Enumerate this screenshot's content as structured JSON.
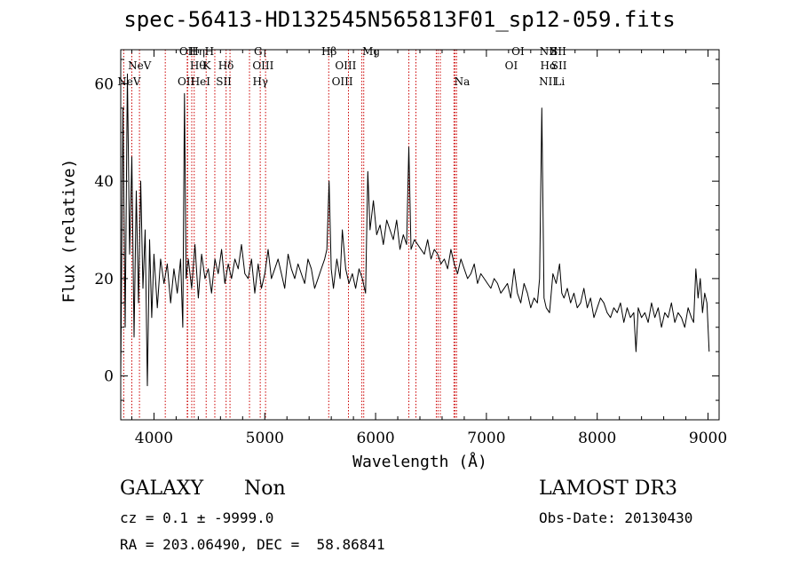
{
  "chart_data": {
    "type": "line",
    "title": "spec-56413-HD132545N565813F01_sp12-059.fits",
    "xlabel": "Wavelength (Å)",
    "ylabel": "Flux (relative)",
    "xlim": [
      3700,
      9100
    ],
    "ylim": [
      -9,
      67
    ],
    "xticks": [
      4000,
      5000,
      6000,
      7000,
      8000,
      9000
    ],
    "yticks": [
      0,
      20,
      40,
      60
    ],
    "grid": false,
    "line_color": "#000000",
    "marker_color": "#cc0000",
    "series": [
      {
        "x": [
          3700,
          3720,
          3740,
          3760,
          3780,
          3800,
          3820,
          3840,
          3860,
          3880,
          3900,
          3920,
          3940,
          3960,
          3980,
          4000,
          4030,
          4060,
          4090,
          4120,
          4150,
          4180,
          4210,
          4240,
          4260,
          4275,
          4290,
          4310,
          4340,
          4370,
          4400,
          4430,
          4460,
          4490,
          4520,
          4550,
          4580,
          4610,
          4640,
          4670,
          4700,
          4730,
          4760,
          4790,
          4820,
          4850,
          4880,
          4910,
          4940,
          4970,
          5000,
          5030,
          5060,
          5090,
          5120,
          5150,
          5180,
          5210,
          5240,
          5270,
          5300,
          5330,
          5360,
          5390,
          5420,
          5450,
          5480,
          5510,
          5540,
          5560,
          5580,
          5600,
          5620,
          5650,
          5680,
          5700,
          5730,
          5760,
          5790,
          5820,
          5850,
          5880,
          5910,
          5930,
          5950,
          5980,
          6010,
          6040,
          6070,
          6100,
          6130,
          6160,
          6190,
          6220,
          6250,
          6280,
          6300,
          6320,
          6350,
          6380,
          6410,
          6440,
          6470,
          6500,
          6530,
          6560,
          6590,
          6620,
          6650,
          6680,
          6710,
          6740,
          6770,
          6800,
          6830,
          6860,
          6890,
          6920,
          6950,
          6980,
          7010,
          7040,
          7070,
          7100,
          7130,
          7160,
          7190,
          7220,
          7250,
          7280,
          7310,
          7340,
          7370,
          7400,
          7430,
          7460,
          7480,
          7500,
          7520,
          7540,
          7570,
          7600,
          7630,
          7660,
          7680,
          7700,
          7730,
          7760,
          7790,
          7820,
          7850,
          7880,
          7910,
          7940,
          7970,
          8000,
          8030,
          8060,
          8090,
          8120,
          8150,
          8180,
          8210,
          8240,
          8270,
          8300,
          8330,
          8350,
          8370,
          8400,
          8430,
          8460,
          8490,
          8520,
          8550,
          8580,
          8610,
          8640,
          8670,
          8700,
          8730,
          8760,
          8790,
          8820,
          8850,
          8870,
          8890,
          8910,
          8930,
          8950,
          8970,
          8990,
          9010
        ],
        "y": [
          0,
          55,
          10,
          62,
          25,
          45,
          8,
          38,
          15,
          40,
          18,
          30,
          -2,
          28,
          12,
          25,
          14,
          24,
          19,
          23,
          15,
          22,
          17,
          24,
          10,
          58,
          20,
          24,
          18,
          27,
          16,
          25,
          20,
          22,
          17,
          24,
          21,
          26,
          19,
          23,
          20,
          24,
          22,
          27,
          21,
          20,
          24,
          17,
          23,
          18,
          21,
          26,
          20,
          22,
          24,
          21,
          18,
          25,
          22,
          20,
          23,
          21,
          19,
          24,
          22,
          18,
          20,
          22,
          24,
          26,
          40,
          22,
          18,
          24,
          20,
          30,
          22,
          19,
          21,
          18,
          22,
          20,
          17,
          42,
          30,
          36,
          29,
          31,
          27,
          32,
          30,
          28,
          32,
          26,
          29,
          27,
          47,
          26,
          28,
          27,
          26,
          25,
          28,
          24,
          26,
          25,
          23,
          24,
          22,
          26,
          23,
          21,
          24,
          22,
          20,
          21,
          23,
          19,
          21,
          20,
          19,
          18,
          20,
          19,
          17,
          18,
          19,
          16,
          22,
          17,
          15,
          19,
          17,
          14,
          16,
          15,
          20,
          55,
          16,
          14,
          13,
          21,
          19,
          23,
          17,
          16,
          18,
          15,
          17,
          14,
          15,
          18,
          14,
          16,
          12,
          14,
          16,
          15,
          13,
          12,
          14,
          13,
          15,
          11,
          14,
          12,
          13,
          5,
          14,
          12,
          13,
          11,
          15,
          12,
          14,
          10,
          13,
          12,
          15,
          11,
          13,
          12,
          10,
          14,
          12,
          11,
          22,
          16,
          20,
          13,
          17,
          15,
          5
        ]
      }
    ],
    "lines": [
      {
        "x": 3727
      },
      {
        "x": 3800
      },
      {
        "x": 3869
      },
      {
        "x": 4102
      },
      {
        "x": 4300
      },
      {
        "x": 4304
      },
      {
        "x": 4341
      },
      {
        "x": 4363
      },
      {
        "x": 4471
      },
      {
        "x": 4549
      },
      {
        "x": 4651
      },
      {
        "x": 4686
      },
      {
        "x": 4862
      },
      {
        "x": 4959
      },
      {
        "x": 5007
      },
      {
        "x": 5577
      },
      {
        "x": 5755
      },
      {
        "x": 5876
      },
      {
        "x": 5893
      },
      {
        "x": 6300
      },
      {
        "x": 6364
      },
      {
        "x": 6548
      },
      {
        "x": 6563
      },
      {
        "x": 6584
      },
      {
        "x": 6707
      },
      {
        "x": 6717
      },
      {
        "x": 6731
      }
    ],
    "labels": [
      {
        "text": "NeV",
        "x": 3870,
        "row": 2
      },
      {
        "text": "NeV",
        "x": 3775,
        "row": 3
      },
      {
        "text": "OII",
        "x": 4305,
        "row": 1
      },
      {
        "text": "Hη",
        "x": 4390,
        "row": 1
      },
      {
        "text": "H",
        "x": 4500,
        "row": 1
      },
      {
        "text": "Hθ",
        "x": 4395,
        "row": 2
      },
      {
        "text": "K",
        "x": 4478,
        "row": 2
      },
      {
        "text": "Hδ",
        "x": 4650,
        "row": 2
      },
      {
        "text": "OII",
        "x": 4290,
        "row": 3
      },
      {
        "text": "HeI",
        "x": 4420,
        "row": 3
      },
      {
        "text": "SII",
        "x": 4630,
        "row": 3
      },
      {
        "text": "G",
        "x": 4940,
        "row": 1
      },
      {
        "text": "OIII",
        "x": 4985,
        "row": 2
      },
      {
        "text": "Hγ",
        "x": 4960,
        "row": 3
      },
      {
        "text": "Hβ",
        "x": 5580,
        "row": 1
      },
      {
        "text": "OIII",
        "x": 5730,
        "row": 2
      },
      {
        "text": "OIII",
        "x": 5700,
        "row": 3
      },
      {
        "text": "Mg",
        "x": 5960,
        "row": 1
      },
      {
        "text": "Na",
        "x": 6780,
        "row": 3
      },
      {
        "text": "OI",
        "x": 7285,
        "row": 1
      },
      {
        "text": "OI",
        "x": 7225,
        "row": 2
      },
      {
        "text": "NII",
        "x": 7560,
        "row": 1
      },
      {
        "text": "SII",
        "x": 7650,
        "row": 1
      },
      {
        "text": "Hα",
        "x": 7560,
        "row": 2
      },
      {
        "text": "SII",
        "x": 7655,
        "row": 2
      },
      {
        "text": "NII",
        "x": 7555,
        "row": 3
      },
      {
        "text": "Li",
        "x": 7660,
        "row": 3
      }
    ]
  },
  "info": {
    "class": "GALAXY",
    "subclass": "Non",
    "cz": "cz = 0.1 ± -9999.0",
    "radec": "RA = 203.06490, DEC =  58.86841",
    "survey": "LAMOST DR3",
    "obsdate": "Obs-Date: 20130430"
  }
}
